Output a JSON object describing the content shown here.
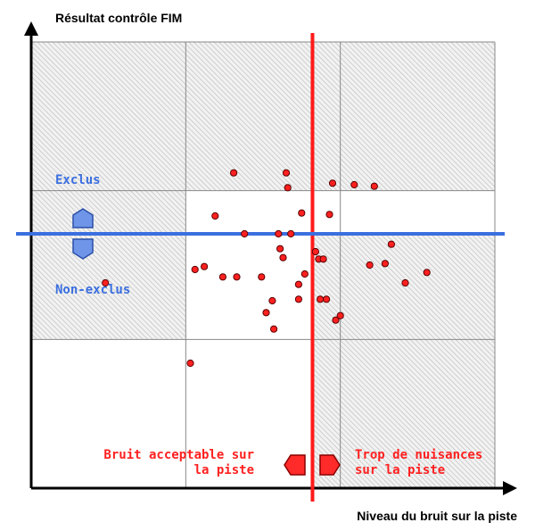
{
  "chart_data": {
    "type": "scatter",
    "title": "",
    "ylabel": "Résultat contrôle FIM",
    "xlabel": "Niveau du bruit sur la piste",
    "xlim": [
      0,
      3
    ],
    "ylim": [
      0,
      3
    ],
    "grid": true,
    "threshold_x": 1.82,
    "threshold_y": 1.71,
    "quadrant_labels": {
      "above_threshold_y": "Exclus",
      "below_threshold_y": "Non-exclus",
      "left_of_threshold_x": [
        "Bruit acceptable sur",
        "la piste"
      ],
      "right_of_threshold_x": [
        "Trop de nuisances",
        "sur la piste"
      ]
    },
    "points": [
      [
        0.48,
        1.38
      ],
      [
        1.03,
        0.84
      ],
      [
        1.06,
        1.47
      ],
      [
        1.12,
        1.49
      ],
      [
        1.19,
        1.83
      ],
      [
        1.24,
        1.42
      ],
      [
        1.31,
        2.12
      ],
      [
        1.33,
        1.42
      ],
      [
        1.38,
        1.71
      ],
      [
        1.49,
        1.42
      ],
      [
        1.52,
        1.18
      ],
      [
        1.56,
        1.26
      ],
      [
        1.57,
        1.07
      ],
      [
        1.6,
        1.71
      ],
      [
        1.61,
        1.61
      ],
      [
        1.63,
        1.55
      ],
      [
        1.65,
        2.12
      ],
      [
        1.66,
        2.02
      ],
      [
        1.68,
        1.71
      ],
      [
        1.73,
        1.27
      ],
      [
        1.73,
        1.37
      ],
      [
        1.75,
        1.85
      ],
      [
        1.77,
        1.44
      ],
      [
        1.84,
        1.59
      ],
      [
        1.86,
        1.54
      ],
      [
        1.87,
        1.27
      ],
      [
        1.89,
        1.54
      ],
      [
        1.91,
        1.27
      ],
      [
        1.93,
        1.84
      ],
      [
        1.95,
        2.05
      ],
      [
        1.97,
        1.13
      ],
      [
        2.0,
        1.16
      ],
      [
        2.09,
        2.04
      ],
      [
        2.19,
        1.5
      ],
      [
        2.22,
        2.03
      ],
      [
        2.29,
        1.51
      ],
      [
        2.33,
        1.64
      ],
      [
        2.42,
        1.38
      ],
      [
        2.56,
        1.45
      ]
    ],
    "colors": {
      "points": "#ff2020",
      "threshold_x_line": "#ff1a1a",
      "threshold_y_line": "#3b6fe0",
      "blue_markers": "#6f95e8",
      "red_markers": "#ff2a2a",
      "hatched_regions": "#c9c9c9"
    }
  }
}
